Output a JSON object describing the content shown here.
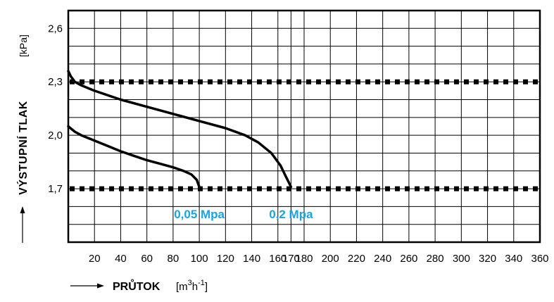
{
  "chart_data": {
    "type": "line",
    "xlabel": "PRŮTOK",
    "xunit_base": "[m",
    "xunit_sup1": "3",
    "xunit_mid": "h",
    "xunit_sup2": "-1",
    "xunit_end": "]",
    "ylabel": "VÝSTUPNÍ TLAK",
    "yunit": "[kPa]",
    "xlim": [
      0,
      360
    ],
    "ylim": [
      1.4,
      2.7
    ],
    "xticks": [
      20,
      40,
      60,
      80,
      100,
      120,
      140,
      160,
      170,
      180,
      200,
      220,
      240,
      260,
      280,
      300,
      320,
      340,
      360
    ],
    "xtick_labels": [
      "20",
      "40",
      "60",
      "80",
      "100",
      "120",
      "140",
      "160",
      "170",
      "180",
      "200",
      "220",
      "240",
      "260",
      "280",
      "300",
      "320",
      "340",
      "360"
    ],
    "yticks": [
      1.7,
      2.0,
      2.3,
      2.6
    ],
    "ytick_labels": [
      "1,7",
      "2,0",
      "2,3",
      "2,6"
    ],
    "reference_lines": [
      2.3,
      1.7
    ],
    "grid": true,
    "series_color": "#1aa3e0",
    "series": [
      {
        "name": "0,05 Mpa",
        "x": [
          0,
          5,
          10,
          20,
          30,
          40,
          50,
          60,
          70,
          80,
          88,
          94,
          98,
          100
        ],
        "y": [
          2.05,
          2.02,
          2.0,
          1.97,
          1.94,
          1.91,
          1.885,
          1.86,
          1.84,
          1.82,
          1.8,
          1.78,
          1.75,
          1.71
        ]
      },
      {
        "name": "0,2 Mpa",
        "x": [
          0,
          2,
          5,
          10,
          20,
          40,
          60,
          80,
          100,
          120,
          135,
          145,
          155,
          162,
          166,
          168,
          170
        ],
        "y": [
          2.36,
          2.33,
          2.3,
          2.28,
          2.25,
          2.2,
          2.16,
          2.12,
          2.08,
          2.04,
          2.0,
          1.96,
          1.9,
          1.83,
          1.77,
          1.74,
          1.71
        ]
      }
    ]
  }
}
